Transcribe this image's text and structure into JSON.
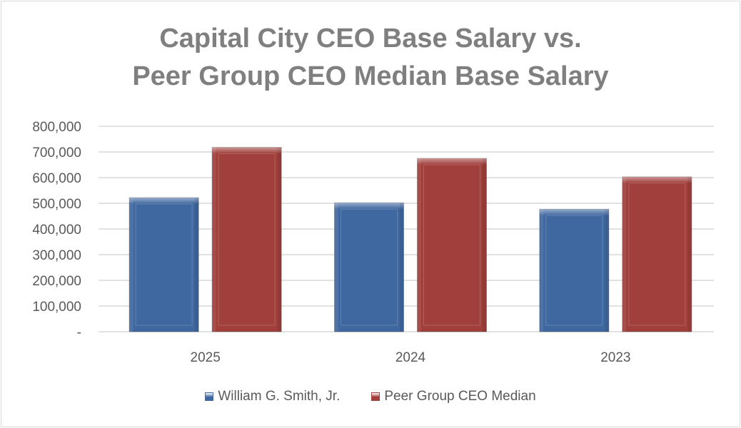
{
  "chart_data": {
    "type": "bar",
    "title_line1": "Capital City CEO Base Salary vs.",
    "title_line2": "Peer Group CEO Median Base Salary",
    "categories": [
      "2025",
      "2024",
      "2023"
    ],
    "series": [
      {
        "name": "William G. Smith, Jr.",
        "values": [
          522000,
          502000,
          477000
        ],
        "color": "#3f68a0"
      },
      {
        "name": "Peer Group CEO Median",
        "values": [
          718000,
          675000,
          603000
        ],
        "color": "#a03f3b"
      }
    ],
    "ylim": [
      0,
      800000
    ],
    "yticks": [
      0,
      100000,
      200000,
      300000,
      400000,
      500000,
      600000,
      700000,
      800000
    ],
    "ytick_labels": [
      "-",
      "100,000",
      "200,000",
      "300,000",
      "400,000",
      "500,000",
      "600,000",
      "700,000",
      "800,000"
    ],
    "xlabel": "",
    "ylabel": "",
    "grid": true,
    "legend_position": "bottom"
  }
}
